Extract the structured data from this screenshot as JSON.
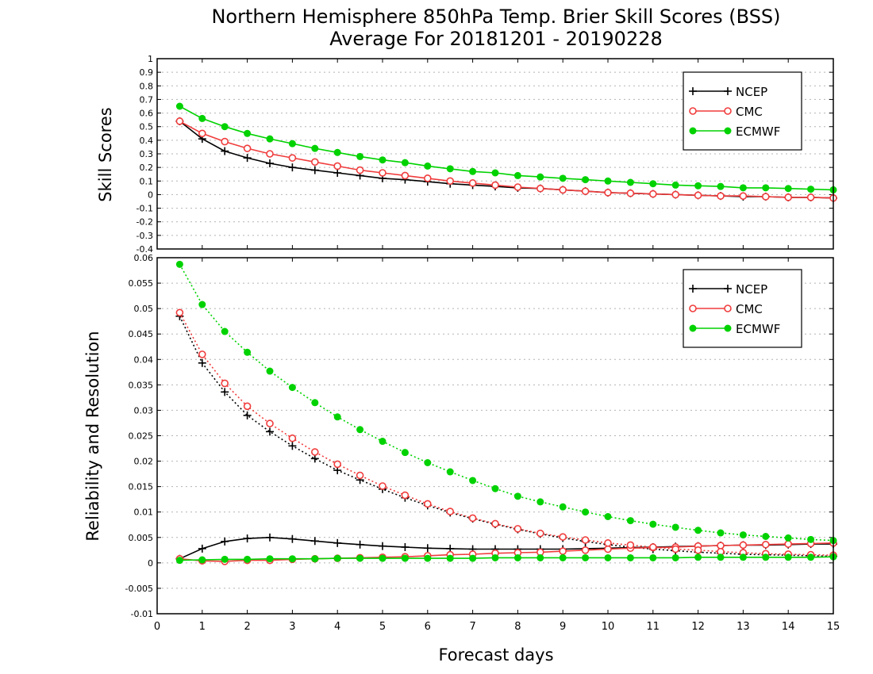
{
  "title_line1": "Northern Hemisphere 850hPa Temp. Brier Skill Scores (BSS)",
  "title_line2": "Average For 20181201 - 20190228",
  "colors": {
    "NCEP": "#000000",
    "CMC": "#f03c3c",
    "ECMWF": "#00d200",
    "grid": "#b4b4b4"
  },
  "chart_data": [
    {
      "type": "line",
      "panel": "top",
      "ylabel": "Skill Scores",
      "xlabel": "Forecast days",
      "xlim": [
        0,
        15
      ],
      "ylim": [
        -0.4,
        1
      ],
      "yticks": [
        "-0.4",
        "-0.3",
        "-0.2",
        "-0.1",
        "0",
        "0.1",
        "0.2",
        "0.3",
        "0.4",
        "0.5",
        "0.6",
        "0.7",
        "0.8",
        "0.9",
        "1"
      ],
      "xticks": [
        "0",
        "1",
        "2",
        "3",
        "4",
        "5",
        "6",
        "7",
        "8",
        "9",
        "10",
        "11",
        "12",
        "13",
        "14",
        "15"
      ],
      "grid": "horizontal dotted",
      "legend": {
        "placement": "top-right",
        "entries": [
          "NCEP",
          "CMC",
          "ECMWF"
        ]
      },
      "x": [
        0.5,
        1,
        1.5,
        2,
        2.5,
        3,
        3.5,
        4,
        4.5,
        5,
        5.5,
        6,
        6.5,
        7,
        7.5,
        8,
        8.5,
        9,
        9.5,
        10,
        10.5,
        11,
        11.5,
        12,
        12.5,
        13,
        13.5,
        14,
        14.5,
        15
      ],
      "series": [
        {
          "name": "NCEP",
          "style": "solid",
          "marker": "plus",
          "values": [
            0.54,
            0.41,
            0.32,
            0.27,
            0.23,
            0.2,
            0.18,
            0.16,
            0.14,
            0.12,
            0.11,
            0.095,
            0.08,
            0.07,
            0.06,
            0.05,
            0.045,
            0.035,
            0.025,
            0.015,
            0.01,
            0.005,
            0.0,
            -0.005,
            -0.01,
            -0.015,
            -0.015,
            -0.02,
            -0.02,
            -0.025
          ]
        },
        {
          "name": "CMC",
          "style": "solid",
          "marker": "open-circle",
          "values": [
            0.54,
            0.45,
            0.39,
            0.34,
            0.3,
            0.27,
            0.24,
            0.21,
            0.18,
            0.16,
            0.14,
            0.12,
            0.1,
            0.085,
            0.07,
            0.055,
            0.045,
            0.035,
            0.025,
            0.015,
            0.01,
            0.005,
            0.0,
            -0.005,
            -0.01,
            -0.01,
            -0.015,
            -0.02,
            -0.02,
            -0.025
          ]
        },
        {
          "name": "ECMWF",
          "style": "solid",
          "marker": "filled-circle",
          "values": [
            0.65,
            0.56,
            0.5,
            0.45,
            0.41,
            0.375,
            0.34,
            0.31,
            0.28,
            0.255,
            0.235,
            0.21,
            0.19,
            0.17,
            0.16,
            0.14,
            0.13,
            0.12,
            0.11,
            0.1,
            0.09,
            0.08,
            0.07,
            0.065,
            0.06,
            0.05,
            0.05,
            0.045,
            0.04,
            0.035
          ]
        }
      ]
    },
    {
      "type": "line",
      "panel": "bottom",
      "ylabel": "Reliability and Resolution",
      "xlabel": "Forecast days",
      "xlim": [
        0,
        15
      ],
      "ylim": [
        -0.01,
        0.06
      ],
      "yticks": [
        "-0.01",
        "-0.005",
        "0",
        "0.005",
        "0.01",
        "0.015",
        "0.02",
        "0.025",
        "0.03",
        "0.035",
        "0.04",
        "0.045",
        "0.05",
        "0.055",
        "0.06"
      ],
      "xticks": [
        "0",
        "1",
        "2",
        "3",
        "4",
        "5",
        "6",
        "7",
        "8",
        "9",
        "10",
        "11",
        "12",
        "13",
        "14",
        "15"
      ],
      "grid": "horizontal dotted",
      "legend": {
        "placement": "top-right",
        "entries": [
          "NCEP",
          "CMC",
          "ECMWF"
        ]
      },
      "x": [
        0.5,
        1,
        1.5,
        2,
        2.5,
        3,
        3.5,
        4,
        4.5,
        5,
        5.5,
        6,
        6.5,
        7,
        7.5,
        8,
        8.5,
        9,
        9.5,
        10,
        10.5,
        11,
        11.5,
        12,
        12.5,
        13,
        13.5,
        14,
        14.5,
        15
      ],
      "series": [
        {
          "name": "NCEP",
          "style": "solid",
          "marker": "plus",
          "values": [
            0.0008,
            0.0028,
            0.0042,
            0.0048,
            0.005,
            0.0047,
            0.0043,
            0.0039,
            0.0036,
            0.0033,
            0.0031,
            0.0029,
            0.0028,
            0.0027,
            0.0027,
            0.0027,
            0.0027,
            0.0027,
            0.0028,
            0.0029,
            0.003,
            0.0031,
            0.0032,
            0.0033,
            0.0034,
            0.0035,
            0.0035,
            0.0036,
            0.0037,
            0.0037
          ]
        },
        {
          "name": "NCEP",
          "style": "dotted",
          "marker": "plus",
          "values": [
            0.0485,
            0.0393,
            0.0336,
            0.029,
            0.0258,
            0.023,
            0.0205,
            0.0182,
            0.0163,
            0.0145,
            0.0128,
            0.0113,
            0.0099,
            0.0087,
            0.0076,
            0.0066,
            0.0057,
            0.0049,
            0.0042,
            0.0036,
            0.0031,
            0.0027,
            0.0024,
            0.0021,
            0.0019,
            0.0017,
            0.0016,
            0.0015,
            0.0014,
            0.0013
          ]
        },
        {
          "name": "CMC",
          "style": "solid",
          "marker": "open-circle",
          "values": [
            0.0008,
            0.0004,
            0.0003,
            0.0005,
            0.0005,
            0.0007,
            0.0008,
            0.0009,
            0.001,
            0.0011,
            0.0012,
            0.0014,
            0.0016,
            0.0017,
            0.0019,
            0.002,
            0.0021,
            0.0023,
            0.0025,
            0.0027,
            0.0029,
            0.003,
            0.0031,
            0.0033,
            0.0034,
            0.0035,
            0.0036,
            0.0037,
            0.0038,
            0.0039
          ]
        },
        {
          "name": "CMC",
          "style": "dotted",
          "marker": "open-circle",
          "values": [
            0.0492,
            0.041,
            0.0353,
            0.0308,
            0.0274,
            0.0245,
            0.0218,
            0.0194,
            0.0172,
            0.0151,
            0.0133,
            0.0116,
            0.0101,
            0.0088,
            0.0077,
            0.0067,
            0.0058,
            0.0051,
            0.0045,
            0.0039,
            0.0035,
            0.0031,
            0.0027,
            0.0025,
            0.0022,
            0.002,
            0.0018,
            0.0017,
            0.0016,
            0.0015
          ]
        },
        {
          "name": "ECMWF",
          "style": "solid",
          "marker": "filled-circle",
          "values": [
            0.0005,
            0.0006,
            0.0007,
            0.0007,
            0.0008,
            0.0008,
            0.0008,
            0.0009,
            0.0009,
            0.0009,
            0.0009,
            0.0009,
            0.0009,
            0.0009,
            0.001,
            0.001,
            0.001,
            0.001,
            0.001,
            0.001,
            0.001,
            0.001,
            0.001,
            0.0011,
            0.0011,
            0.0011,
            0.0011,
            0.0011,
            0.0011,
            0.0012
          ]
        },
        {
          "name": "ECMWF",
          "style": "dotted",
          "marker": "filled-circle",
          "values": [
            0.0587,
            0.0508,
            0.0455,
            0.0414,
            0.0377,
            0.0345,
            0.0315,
            0.0287,
            0.0262,
            0.0239,
            0.0217,
            0.0197,
            0.0179,
            0.0162,
            0.0146,
            0.0131,
            0.012,
            0.011,
            0.01,
            0.0091,
            0.0083,
            0.0076,
            0.007,
            0.0064,
            0.0059,
            0.0055,
            0.0052,
            0.0049,
            0.0046,
            0.0044
          ]
        }
      ]
    }
  ]
}
